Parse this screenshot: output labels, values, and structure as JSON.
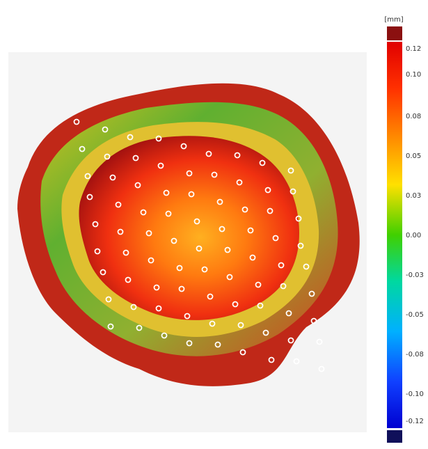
{
  "colorbar": {
    "unit": "[mm]",
    "labels": [
      "0.12",
      "0.10",
      "0.08",
      "0.05",
      "0.03",
      "0.00",
      "-0.03",
      "-0.05",
      "-0.08",
      "-0.10",
      "-0.12"
    ]
  }
}
